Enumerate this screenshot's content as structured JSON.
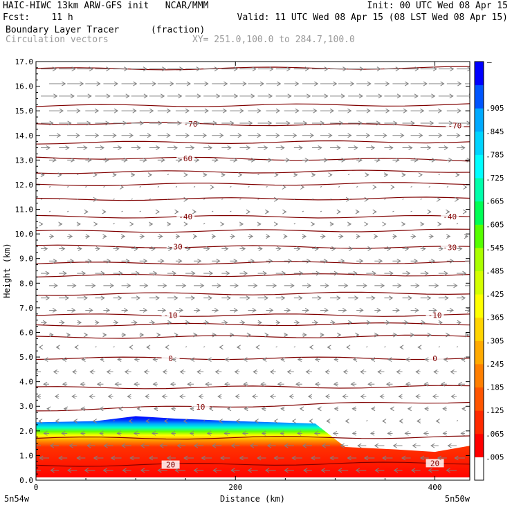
{
  "header": {
    "line1_left": "HAIC-HIWC 13km ARW-GFS init   NCAR/MMM",
    "line1_right": "Init: 00 UTC Wed 08 Apr 15",
    "line2_left": "Fcst:    11 h",
    "line2_right": "Valid: 11 UTC Wed 08 Apr 15 (08 LST Wed 08 Apr 15)",
    "line3_left": "Boundary Layer Tracer",
    "line3_mid": "(fraction)",
    "line4_left": "Circulation vectors",
    "line4_mid": "XY= 251.0,100.0 to 284.7,100.0"
  },
  "colors": {
    "contour": "#800000",
    "vector": "#808080",
    "fill_scale": [
      "#ffffff",
      "#ff0000",
      "#ff2a00",
      "#ff5500",
      "#ff7f00",
      "#ffaa00",
      "#ffd400",
      "#ffff00",
      "#d4ff00",
      "#aaff00",
      "#55ff00",
      "#00ff55",
      "#00ffaa",
      "#00ffff",
      "#00d4ff",
      "#00aaff",
      "#0055ff",
      "#0000ff"
    ]
  },
  "chart_data": {
    "type": "cross-section",
    "title": "Boundary Layer Tracer",
    "subtitle": "Circulation vectors",
    "xlabel": "Distance (km)",
    "ylabel": "Height (km)",
    "xlim": [
      0,
      435
    ],
    "ylim": [
      0,
      17
    ],
    "x_ticks": [
      0,
      200,
      400
    ],
    "y_ticks": [
      0.0,
      1.0,
      2.0,
      3.0,
      4.0,
      5.0,
      6.0,
      7.0,
      8.0,
      9.0,
      10.0,
      11.0,
      12.0,
      13.0,
      14.0,
      15.0,
      16.0,
      17.0
    ],
    "x_endpoint_labels": [
      "5n54w",
      "5n50w"
    ],
    "colorbar": {
      "unit": "fraction",
      "labels": [
        ".005",
        ".065",
        ".125",
        ".185",
        ".245",
        ".305",
        ".365",
        ".425",
        ".485",
        ".545",
        ".605",
        ".665",
        ".725",
        ".785",
        ".845",
        ".905"
      ],
      "top_label": "–"
    },
    "terrain_top_km": [
      {
        "x": 0,
        "h": 2.35
      },
      {
        "x": 60,
        "h": 2.4
      },
      {
        "x": 100,
        "h": 2.6
      },
      {
        "x": 140,
        "h": 2.5
      },
      {
        "x": 200,
        "h": 2.4
      },
      {
        "x": 280,
        "h": 2.3
      },
      {
        "x": 310,
        "h": 1.35
      },
      {
        "x": 360,
        "h": 1.25
      },
      {
        "x": 400,
        "h": 1.15
      },
      {
        "x": 435,
        "h": 1.4
      }
    ],
    "temperature_contours": [
      {
        "label": "20",
        "y_left": 0.6,
        "y_right": 0.7,
        "labels_at_x": [
          135,
          400
        ]
      },
      {
        "label": "10",
        "y_left": 2.85,
        "y_right": 3.2,
        "labels_at_x": [
          165
        ]
      },
      {
        "label": "0",
        "y_left": 4.95,
        "y_right": 4.95,
        "labels_at_x": [
          135,
          400
        ]
      },
      {
        "label": "-10",
        "y_left": 6.7,
        "y_right": 6.7,
        "labels_at_x": [
          135,
          400
        ]
      },
      {
        "label": "-30",
        "y_left": 9.5,
        "y_right": 9.45,
        "labels_at_x": [
          140,
          415
        ]
      },
      {
        "label": "-40",
        "y_left": 10.7,
        "y_right": 10.7,
        "labels_at_x": [
          150,
          415
        ]
      },
      {
        "label": "-60",
        "y_left": 13.1,
        "y_right": 13.0,
        "labels_at_x": [
          150
        ]
      },
      {
        "label": "-70",
        "y_left": 14.5,
        "y_right": 14.4,
        "labels_at_x": [
          155,
          420
        ]
      }
    ],
    "temperature_levels_unlabeled_km": [
      1.7,
      3.75,
      5.8,
      6.3,
      7.55,
      8.3,
      8.8,
      10.1,
      11.4,
      12.0,
      12.5,
      13.7,
      15.2,
      16.7
    ],
    "wind_rows": [
      {
        "h": 16.7,
        "u": 1.0
      },
      {
        "h": 16.1,
        "u": 1.0
      },
      {
        "h": 15.6,
        "u": 1.0
      },
      {
        "h": 15.0,
        "u": 0.9
      },
      {
        "h": 14.5,
        "u": 0.85
      },
      {
        "h": 14.0,
        "u": 0.8
      },
      {
        "h": 13.5,
        "u": 0.6
      },
      {
        "h": 13.0,
        "u": 0.4
      },
      {
        "h": 12.4,
        "u": 0.15
      },
      {
        "h": 11.9,
        "u": 0.05
      },
      {
        "h": 11.4,
        "u": 0.05
      },
      {
        "h": 10.9,
        "u": 0.1
      },
      {
        "h": 10.4,
        "u": 0.15
      },
      {
        "h": 9.9,
        "u": 0.25
      },
      {
        "h": 9.4,
        "u": 0.35
      },
      {
        "h": 8.9,
        "u": 0.45
      },
      {
        "h": 8.4,
        "u": 0.55
      },
      {
        "h": 7.9,
        "u": 0.6
      },
      {
        "h": 7.4,
        "u": 0.6
      },
      {
        "h": 6.9,
        "u": 0.45
      },
      {
        "h": 6.4,
        "u": 0.3
      },
      {
        "h": 5.9,
        "u": 0.2
      },
      {
        "h": 5.4,
        "u": -0.1
      },
      {
        "h": 4.9,
        "u": -0.25
      },
      {
        "h": 4.4,
        "u": -0.35
      },
      {
        "h": 3.9,
        "u": -0.35
      },
      {
        "h": 3.4,
        "u": -0.3
      },
      {
        "h": 2.9,
        "u": -0.2
      },
      {
        "h": 2.4,
        "u": -0.15
      },
      {
        "h": 1.9,
        "u": -0.3
      },
      {
        "h": 1.4,
        "u": -0.55
      },
      {
        "h": 0.9,
        "u": -0.6
      },
      {
        "h": 0.4,
        "u": -0.6
      }
    ]
  }
}
